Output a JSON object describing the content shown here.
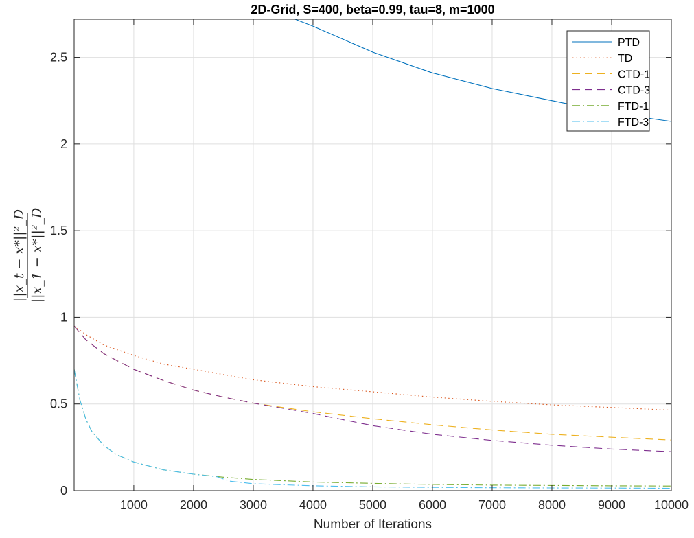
{
  "chart_data": {
    "type": "line",
    "title": "2D-Grid, S=400, beta=0.99, tau=8, m=1000",
    "xlabel": "Number of Iterations",
    "ylabel": {
      "numerator": "||x_t − x*||²_D",
      "denominator": "||x_1 − x*||²_D"
    },
    "xlim": [
      1,
      10000
    ],
    "ylim": [
      0,
      2.72
    ],
    "xticks": [
      1000,
      2000,
      3000,
      4000,
      5000,
      6000,
      7000,
      8000,
      9000,
      10000
    ],
    "xtick_labels": [
      "1000",
      "2000",
      "3000",
      "4000",
      "5000",
      "6000",
      "7000",
      "8000",
      "9000",
      "10000"
    ],
    "yticks": [
      0,
      0.5,
      1,
      1.5,
      2,
      2.5
    ],
    "ytick_labels": [
      "0",
      "0.5",
      "1",
      "1.5",
      "2",
      "2.5"
    ],
    "grid": true,
    "legend_position": "top-right",
    "series": [
      {
        "name": "PTD",
        "color": "#0072BD",
        "style": "solid",
        "x": [
          3700,
          4000,
          5000,
          6000,
          7000,
          8000,
          9000,
          10000
        ],
        "y": [
          2.72,
          2.68,
          2.53,
          2.41,
          2.32,
          2.25,
          2.18,
          2.13
        ]
      },
      {
        "name": "TD",
        "color": "#D95319",
        "style": "dotted",
        "x": [
          1,
          200,
          500,
          1000,
          1500,
          2000,
          3000,
          4000,
          5000,
          6000,
          7000,
          8000,
          9000,
          10000
        ],
        "y": [
          0.95,
          0.9,
          0.84,
          0.78,
          0.73,
          0.7,
          0.64,
          0.6,
          0.57,
          0.54,
          0.515,
          0.495,
          0.48,
          0.465
        ]
      },
      {
        "name": "CTD-1",
        "color": "#EDB120",
        "style": "dashed",
        "x": [
          1,
          200,
          500,
          1000,
          1500,
          2000,
          2500,
          3000,
          3500,
          4000,
          5000,
          6000,
          7000,
          8000,
          9000,
          10000
        ],
        "y": [
          0.95,
          0.87,
          0.79,
          0.7,
          0.635,
          0.58,
          0.54,
          0.505,
          0.48,
          0.455,
          0.415,
          0.38,
          0.35,
          0.325,
          0.308,
          0.292
        ]
      },
      {
        "name": "CTD-3",
        "color": "#7E2F8E",
        "style": "dashed",
        "x": [
          1,
          200,
          500,
          1000,
          1500,
          2000,
          2500,
          3000,
          3500,
          4000,
          5000,
          6000,
          7000,
          8000,
          9000,
          10000
        ],
        "y": [
          0.95,
          0.87,
          0.79,
          0.7,
          0.635,
          0.58,
          0.54,
          0.505,
          0.475,
          0.445,
          0.375,
          0.325,
          0.29,
          0.262,
          0.24,
          0.225
        ]
      },
      {
        "name": "FTD-1",
        "color": "#77AC30",
        "style": "dashdot",
        "x": [
          1,
          100,
          200,
          300,
          500,
          700,
          1000,
          1500,
          2000,
          2500,
          3000,
          4000,
          5000,
          6000,
          7000,
          8000,
          9000,
          10000
        ],
        "y": [
          0.7,
          0.52,
          0.41,
          0.34,
          0.26,
          0.21,
          0.165,
          0.12,
          0.095,
          0.078,
          0.065,
          0.05,
          0.042,
          0.036,
          0.032,
          0.03,
          0.028,
          0.027
        ]
      },
      {
        "name": "FTD-3",
        "color": "#4DBEEE",
        "style": "dashdot",
        "x": [
          1,
          100,
          200,
          300,
          500,
          700,
          1000,
          1500,
          2000,
          2400,
          2600,
          3000,
          4000,
          5000,
          6000,
          7000,
          8000,
          9000,
          10000
        ],
        "y": [
          0.7,
          0.52,
          0.41,
          0.34,
          0.26,
          0.21,
          0.165,
          0.12,
          0.095,
          0.08,
          0.055,
          0.04,
          0.028,
          0.022,
          0.019,
          0.017,
          0.016,
          0.015,
          0.014
        ]
      }
    ]
  }
}
